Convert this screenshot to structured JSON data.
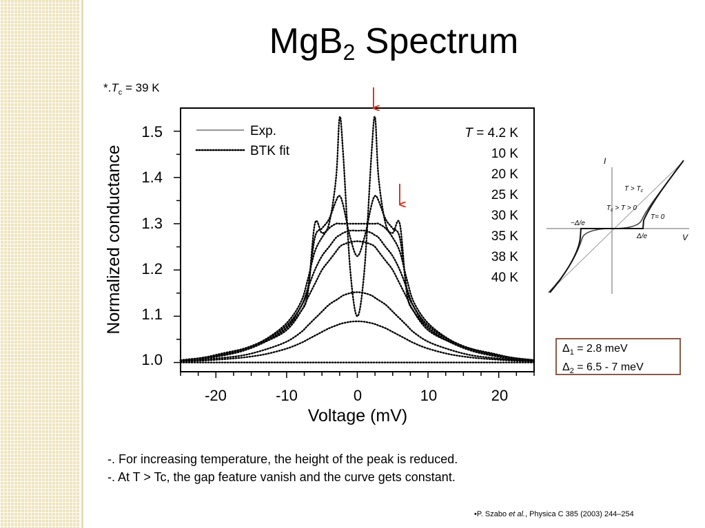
{
  "slide": {
    "title_main": "MgB",
    "title_sub": "2",
    "title_rest": " Spectrum",
    "tc_note": {
      "prefix": "*.",
      "symbol": "T",
      "sub": "c",
      "value": " = 39 K"
    },
    "gaps": {
      "d1_symbol": "Δ",
      "d1_sub": "1",
      "d1_value": " = 2.8 meV",
      "d2_symbol": "Δ",
      "d2_sub": "2",
      "d2_value": " = 6.5 - 7 meV"
    },
    "notes": [
      "-. For increasing temperature, the height of the peak is reduced.",
      "-. At T > Tc, the gap feature vanish and the curve gets constant."
    ],
    "citation": {
      "prefix": "•P. Szabo ",
      "etal": "et al.",
      "rest": ", Physica C 385 (2003) 244–254"
    },
    "arrow_color": "#d63a1e",
    "accent_border": "#8a5a44"
  },
  "chart_data": [
    {
      "type": "line",
      "xlabel": "Voltage (mV)",
      "ylabel": "Normalized conductance",
      "xlim": [
        -25,
        25
      ],
      "ylim": [
        0.98,
        1.55
      ],
      "xticks": [
        "-20",
        "-10",
        "0",
        "10",
        "20"
      ],
      "yticks": [
        "1.0",
        "1.1",
        "1.2",
        "1.3",
        "1.4",
        "1.5"
      ],
      "legend": {
        "placement": "top-left",
        "entries": [
          "Exp.",
          "BTK fit"
        ],
        "temp_title_symbol": "T",
        "temp_title_rest": " = 4.2 K",
        "temps": [
          "10 K",
          "20 K",
          "25 K",
          "30 K",
          "35 K",
          "38 K",
          "40 K"
        ]
      },
      "x": [
        -25,
        -22,
        -19,
        -16,
        -13,
        -10,
        -8,
        -7,
        -6,
        -5,
        -4,
        -3,
        -2.5,
        -2,
        -1,
        0,
        1,
        2,
        2.5,
        3,
        4,
        5,
        6,
        7,
        8,
        10,
        13,
        16,
        19,
        22,
        25
      ],
      "series": [
        {
          "name": "T = 4.2 K",
          "values": [
            1.005,
            1.01,
            1.02,
            1.03,
            1.045,
            1.07,
            1.11,
            1.15,
            1.3,
            1.28,
            1.3,
            1.4,
            1.53,
            1.45,
            1.2,
            1.1,
            1.2,
            1.45,
            1.53,
            1.4,
            1.3,
            1.28,
            1.3,
            1.15,
            1.11,
            1.07,
            1.045,
            1.03,
            1.02,
            1.01,
            1.005
          ]
        },
        {
          "name": "10 K",
          "values": [
            1.005,
            1.01,
            1.018,
            1.03,
            1.045,
            1.075,
            1.12,
            1.16,
            1.27,
            1.29,
            1.31,
            1.35,
            1.36,
            1.34,
            1.27,
            1.23,
            1.27,
            1.34,
            1.36,
            1.35,
            1.31,
            1.29,
            1.27,
            1.16,
            1.12,
            1.075,
            1.045,
            1.03,
            1.018,
            1.01,
            1.005
          ]
        },
        {
          "name": "20 K",
          "values": [
            1.005,
            1.01,
            1.018,
            1.03,
            1.05,
            1.085,
            1.13,
            1.18,
            1.24,
            1.27,
            1.29,
            1.3,
            1.3,
            1.3,
            1.3,
            1.3,
            1.3,
            1.3,
            1.3,
            1.3,
            1.29,
            1.27,
            1.24,
            1.18,
            1.13,
            1.085,
            1.05,
            1.03,
            1.018,
            1.01,
            1.005
          ]
        },
        {
          "name": "25 K",
          "values": [
            1.004,
            1.009,
            1.016,
            1.028,
            1.048,
            1.08,
            1.12,
            1.16,
            1.2,
            1.23,
            1.25,
            1.27,
            1.275,
            1.28,
            1.285,
            1.285,
            1.285,
            1.28,
            1.275,
            1.27,
            1.25,
            1.23,
            1.2,
            1.16,
            1.12,
            1.08,
            1.048,
            1.028,
            1.016,
            1.009,
            1.004
          ]
        },
        {
          "name": "30 K",
          "values": [
            1.004,
            1.008,
            1.015,
            1.026,
            1.045,
            1.075,
            1.11,
            1.14,
            1.17,
            1.2,
            1.22,
            1.24,
            1.25,
            1.255,
            1.26,
            1.262,
            1.26,
            1.255,
            1.25,
            1.24,
            1.22,
            1.2,
            1.17,
            1.14,
            1.11,
            1.075,
            1.045,
            1.026,
            1.015,
            1.008,
            1.004
          ]
        },
        {
          "name": "35 K",
          "values": [
            1.003,
            1.006,
            1.01,
            1.016,
            1.028,
            1.045,
            1.065,
            1.08,
            1.095,
            1.11,
            1.125,
            1.135,
            1.14,
            1.145,
            1.15,
            1.152,
            1.15,
            1.145,
            1.14,
            1.135,
            1.125,
            1.11,
            1.095,
            1.08,
            1.065,
            1.045,
            1.028,
            1.016,
            1.01,
            1.006,
            1.003
          ]
        },
        {
          "name": "38 K",
          "values": [
            1.002,
            1.004,
            1.007,
            1.011,
            1.018,
            1.03,
            1.042,
            1.05,
            1.058,
            1.066,
            1.074,
            1.08,
            1.083,
            1.085,
            1.088,
            1.089,
            1.088,
            1.085,
            1.083,
            1.08,
            1.074,
            1.066,
            1.058,
            1.05,
            1.042,
            1.03,
            1.018,
            1.011,
            1.007,
            1.004,
            1.002
          ]
        },
        {
          "name": "40 K",
          "values": [
            1.0,
            1.0,
            1.0,
            1.0,
            1.0,
            1.0,
            1.0,
            1.0,
            1.0,
            1.0,
            1.0,
            1.0,
            1.0,
            1.0,
            1.0,
            1.0,
            1.0,
            1.0,
            1.0,
            1.0,
            1.0,
            1.0,
            1.0,
            1.0,
            1.0,
            1.0,
            1.0,
            1.0,
            1.0,
            1.0,
            1.0
          ]
        }
      ]
    },
    {
      "type": "line",
      "xlabel": "V",
      "ylabel": "I",
      "annotations": {
        "t_gt_tc": "T > T",
        "t_gt_tc_sub": "c",
        "tc_gt_t": "T",
        "tc_gt_t_sub": "c",
        "tc_gt_t_rest": " > T > 0",
        "t_zero": "T= 0",
        "minus_delta": "−Δ/e",
        "plus_delta": "Δ/e"
      },
      "curves": [
        "T > Tc",
        "Tc > T > 0",
        "T = 0"
      ]
    }
  ]
}
